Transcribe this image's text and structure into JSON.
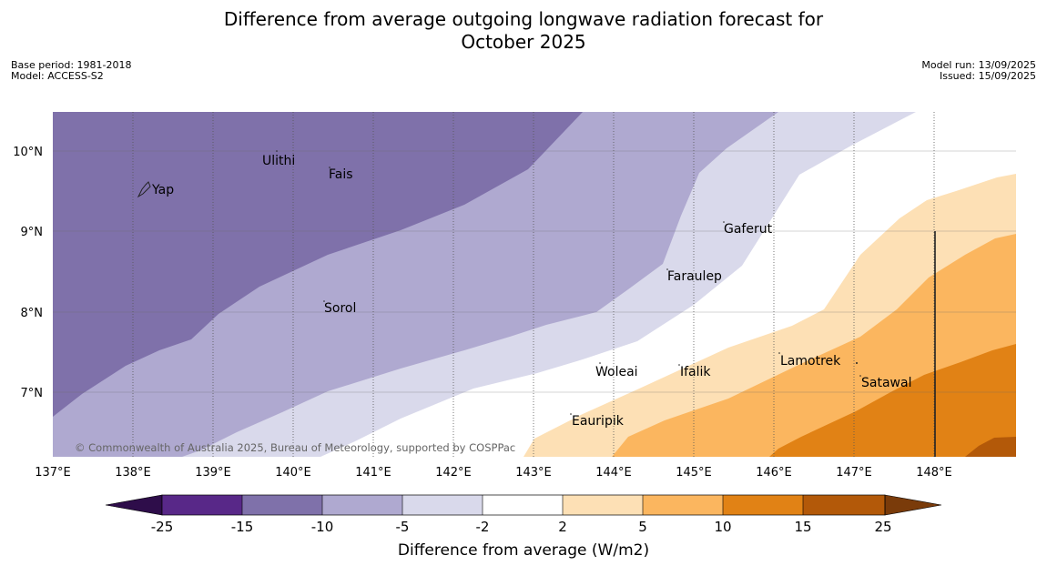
{
  "title_line1": "Difference from average outgoing longwave radiation forecast for",
  "title_line2": "October 2025",
  "meta_left": [
    "Base period: 1981-2018",
    "Model: ACCESS-S2"
  ],
  "meta_right": [
    "Model run: 13/09/2025",
    "Issued: 15/09/2025"
  ],
  "copyright": "© Commonwealth of Australia 2025, Bureau of Meteorology, supported by COSPPac",
  "lon_ticks": [
    "137°E",
    "138°E",
    "139°E",
    "140°E",
    "141°E",
    "142°E",
    "143°E",
    "144°E",
    "145°E",
    "146°E",
    "147°E",
    "148°E"
  ],
  "lat_ticks": [
    "10°N",
    "9°N",
    "8°N",
    "7°N"
  ],
  "places": [
    {
      "name": "Ulithi"
    },
    {
      "name": "Fais"
    },
    {
      "name": "Yap"
    },
    {
      "name": "Gaferut"
    },
    {
      "name": "Faraulep"
    },
    {
      "name": "Sorol"
    },
    {
      "name": "Woleai"
    },
    {
      "name": "Ifalik"
    },
    {
      "name": "Lamotrek"
    },
    {
      "name": "Satawal"
    },
    {
      "name": "Eauripik"
    }
  ],
  "colorbar": {
    "label": "Difference from average (W/m2)",
    "ticks": [
      "-25",
      "-15",
      "-10",
      "-5",
      "-2",
      "2",
      "5",
      "10",
      "15",
      "25"
    ],
    "colors": [
      "#582888",
      "#7f71aa",
      "#afa9d0",
      "#d9d9eb",
      "#ffffff",
      "#fde0b5",
      "#fbb65f",
      "#e18215",
      "#b35909"
    ],
    "under_color": "#2e0d4a",
    "over_color": "#7a3b0a"
  },
  "contour_colors": {
    "deep_purple": "#7f71aa",
    "mid_purple": "#afa9d0",
    "light_purple": "#d9d9eb",
    "neutral": "#ffffff",
    "light_orange": "#fde0b5",
    "mid_orange": "#fbb65f",
    "dark_orange": "#e18215",
    "deepest_orange": "#b35909"
  }
}
